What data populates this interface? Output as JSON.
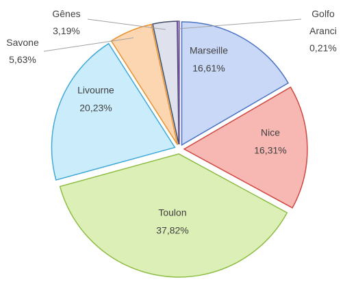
{
  "chart_data": {
    "type": "pie",
    "categories": [
      "Marseille",
      "Nice",
      "Toulon",
      "Livourne",
      "Savone",
      "Gênes",
      "Golfo Aranci"
    ],
    "values": [
      16.61,
      16.31,
      37.82,
      20.23,
      5.63,
      3.19,
      0.21
    ],
    "value_labels": [
      "16,61%",
      "16,31%",
      "37,82%",
      "20,23%",
      "5,63%",
      "3,19%",
      "0,21%"
    ],
    "colors": [
      "#c9d8f6",
      "#f7b7b2",
      "#dcefb6",
      "#cbedfb",
      "#fbd6b1",
      "#dfe2ec",
      "#d9c9e9"
    ],
    "edge_colors": [
      "#4a72c4",
      "#d0463f",
      "#8cbc42",
      "#3fa8d8",
      "#e8902c",
      "#3e4a62",
      "#7050a0"
    ]
  }
}
